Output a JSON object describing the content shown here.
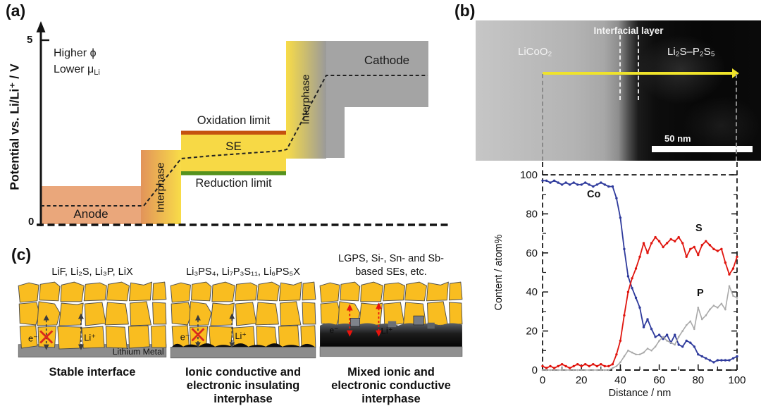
{
  "panel_a": {
    "label": "(a)",
    "axis_label": "Potential vs. Li/Li⁺ / V",
    "tick_top": "5",
    "tick_bottom": "0",
    "note_line1": "Higher ϕ",
    "note_line2": "Lower μ",
    "note_line2_sub": "Li",
    "anode_label": "Anode",
    "interphase_left_label": "Interphase",
    "se_label": "SE",
    "oxidation_label": "Oxidation limit",
    "reduction_label": "Reduction limit",
    "interphase_right_label": "Interphase",
    "cathode_label": "Cathode",
    "colors": {
      "anode": "#EAA77B",
      "interphase_orange": "#E2935A",
      "se_yellow": "#F7D945",
      "oxidation_bar": "#C5520F",
      "reduction_bar": "#55921E",
      "cathode_gray": "#A4A4A4"
    }
  },
  "panel_b": {
    "label": "(b)",
    "tem": {
      "left_material": "LiCoO₂",
      "interfacial_layer": "Interfacial layer",
      "right_material": "Li₂S–P₂S₅",
      "scale_bar": "50 nm"
    }
  },
  "chart_data": {
    "type": "line",
    "title": "",
    "xlabel": "Distance / nm",
    "ylabel": "Content / atom%",
    "xlim": [
      0,
      100
    ],
    "ylim": [
      0,
      100
    ],
    "x_ticks": [
      0,
      20,
      40,
      60,
      80,
      100
    ],
    "y_ticks": [
      0,
      20,
      40,
      60,
      80,
      100
    ],
    "grid": false,
    "legend_position": "inline-labels",
    "x": [
      0,
      2,
      4,
      6,
      8,
      10,
      12,
      14,
      16,
      18,
      20,
      22,
      24,
      26,
      28,
      30,
      32,
      34,
      36,
      38,
      40,
      42,
      44,
      46,
      48,
      50,
      52,
      54,
      56,
      58,
      60,
      62,
      64,
      66,
      68,
      70,
      72,
      74,
      76,
      78,
      80,
      82,
      84,
      86,
      88,
      90,
      92,
      94,
      96,
      98,
      100
    ],
    "series": [
      {
        "name": "Co",
        "color": "#2E3A9C",
        "values": [
          97,
          97,
          96,
          97,
          96,
          95,
          96,
          95,
          96,
          95,
          95,
          96,
          95,
          94,
          95,
          96,
          95,
          94,
          94,
          88,
          78,
          62,
          48,
          42,
          37,
          32,
          22,
          26,
          21,
          17,
          18,
          16,
          18,
          14,
          18,
          13,
          12,
          15,
          14,
          12,
          8,
          7,
          6,
          5,
          4,
          5,
          5,
          5,
          5,
          6,
          7
        ]
      },
      {
        "name": "S",
        "color": "#E0150E",
        "values": [
          2,
          1,
          2,
          1,
          2,
          3,
          2,
          1,
          2,
          3,
          2,
          3,
          2,
          3,
          2,
          3,
          2,
          2,
          3,
          8,
          15,
          28,
          40,
          47,
          52,
          58,
          65,
          60,
          65,
          68,
          66,
          63,
          65,
          67,
          66,
          68,
          65,
          58,
          62,
          63,
          59,
          64,
          66,
          64,
          62,
          61,
          62,
          55,
          49,
          52,
          58
        ]
      },
      {
        "name": "P",
        "color": "#A9A9A9",
        "values": [
          0,
          0,
          0,
          0,
          0,
          0,
          0,
          0,
          0,
          0,
          0,
          0,
          0,
          0,
          0,
          0,
          0,
          0,
          1,
          2,
          4,
          7,
          10,
          9,
          8,
          8,
          9,
          11,
          10,
          12,
          15,
          17,
          15,
          14,
          13,
          17,
          20,
          23,
          25,
          21,
          32,
          26,
          28,
          31,
          33,
          32,
          34,
          31,
          43,
          38,
          37
        ]
      }
    ]
  },
  "panel_c": {
    "label": "(c)",
    "columns": [
      {
        "header_line1": "LiF, Li₂S, Li₃P, LiX",
        "header_line2": "",
        "e_label": "e⁻",
        "li_label": "Li⁺",
        "substrate_label": "Lithium Metal",
        "caption": [
          "Stable interface"
        ]
      },
      {
        "header_line1": "Li₃PS₄, Li₇P₃S₁₁, Li₆PS₅X",
        "header_line2": "",
        "e_label": "e⁻",
        "li_label": "Li⁺",
        "substrate_label": "",
        "caption": [
          "Ionic conductive and",
          "electronic insulating",
          "interphase"
        ]
      },
      {
        "header_line1": "LGPS, Si-, Sn- and Sb-",
        "header_line2": "based SEs, etc.",
        "e_label": "e⁻",
        "li_label": "Li⁺",
        "substrate_label": "",
        "caption": [
          "Mixed ionic and",
          "electronic conductive",
          "interphase"
        ]
      }
    ]
  }
}
